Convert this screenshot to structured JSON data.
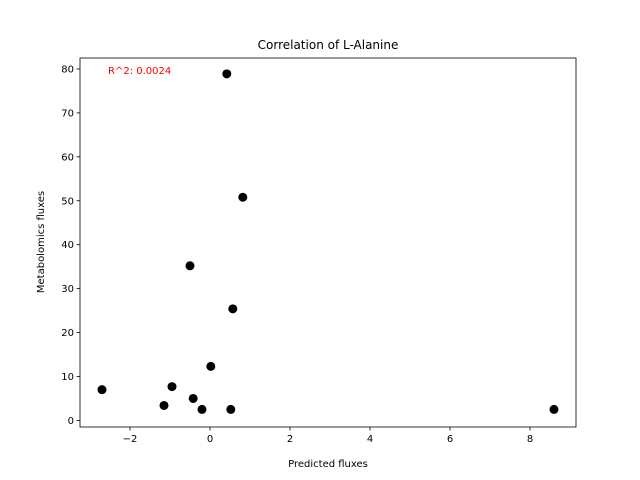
{
  "chart_data": {
    "type": "scatter",
    "title": "Correlation of L-Alanine",
    "xlabel": "Predicted fluxes",
    "ylabel": "Metabolomics fluxes",
    "xlim": [
      -3.25,
      9.15
    ],
    "ylim": [
      -1.5,
      82.5
    ],
    "xticks": [
      -2,
      0,
      2,
      4,
      6,
      8
    ],
    "xtick_labels": [
      "−2",
      "0",
      "2",
      "4",
      "6",
      "8"
    ],
    "yticks": [
      0,
      10,
      20,
      30,
      40,
      50,
      60,
      70,
      80
    ],
    "ytick_labels": [
      "0",
      "10",
      "20",
      "30",
      "40",
      "50",
      "60",
      "70",
      "80"
    ],
    "points": [
      {
        "x": -2.7,
        "y": 7.0
      },
      {
        "x": -1.15,
        "y": 3.4
      },
      {
        "x": -0.95,
        "y": 7.7
      },
      {
        "x": -0.5,
        "y": 35.2
      },
      {
        "x": -0.42,
        "y": 5.0
      },
      {
        "x": -0.2,
        "y": 2.5
      },
      {
        "x": 0.02,
        "y": 12.3
      },
      {
        "x": 0.42,
        "y": 78.9
      },
      {
        "x": 0.52,
        "y": 2.5
      },
      {
        "x": 0.57,
        "y": 25.4
      },
      {
        "x": 0.82,
        "y": 50.8
      },
      {
        "x": 8.6,
        "y": 2.5
      }
    ],
    "annotation": {
      "text": "R^2: 0.0024",
      "x": -2.55,
      "y": 79.5,
      "color": "#ff0000"
    },
    "marker_color": "#000000",
    "grid": false
  }
}
